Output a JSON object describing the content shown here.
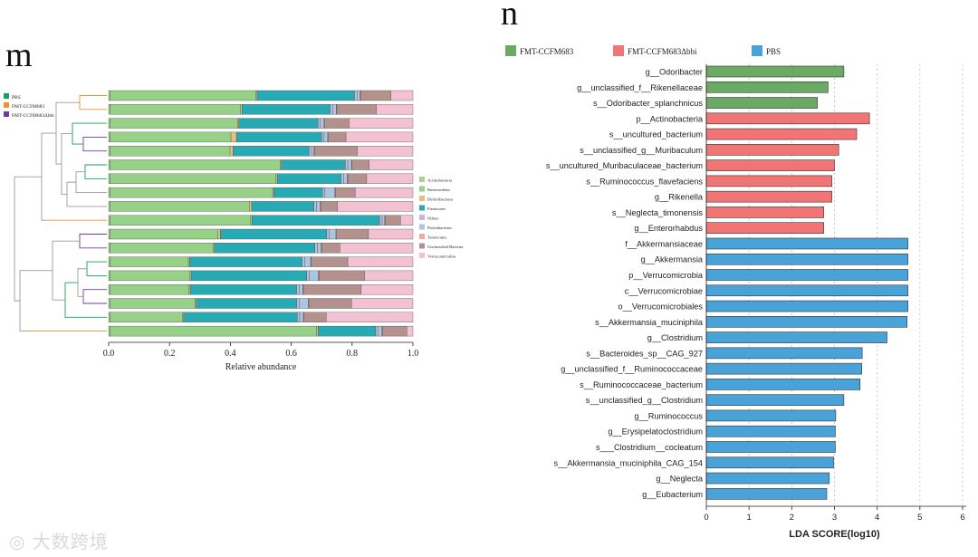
{
  "panels": {
    "m": "m",
    "n": "n"
  },
  "watermark": "大数跨境",
  "chart_data": [
    {
      "type": "bar",
      "subtype": "stacked-horizontal-with-dendrogram",
      "title": "",
      "xlabel": "Relative abundance",
      "xlim": [
        0,
        1.0
      ],
      "xticks": [
        "0.0",
        "0.2",
        "0.4",
        "0.6",
        "0.8",
        "1.0"
      ],
      "group_legend": [
        {
          "label": "PBS",
          "color": "#16a05a"
        },
        {
          "label": "FMT-CCFM683",
          "color": "#f0902e"
        },
        {
          "label": "FMT-CCFM683Δbbi",
          "color": "#6f3aa3"
        }
      ],
      "taxa": [
        {
          "name": "Actinobacteria",
          "color": "#a9d18e"
        },
        {
          "name": "Bacteroidetes",
          "color": "#97d087"
        },
        {
          "name": "Deferribacteres",
          "color": "#e3c07c"
        },
        {
          "name": "Firmicutes",
          "color": "#27aab3"
        },
        {
          "name": "Others",
          "color": "#c9b6d8"
        },
        {
          "name": "Proteobacteria",
          "color": "#a7c8e0"
        },
        {
          "name": "Tenericutes",
          "color": "#f2a8a8"
        },
        {
          "name": "Unclassified Bacteria",
          "color": "#b3918c"
        },
        {
          "name": "Verrucomicrobia",
          "color": "#f3c2d2"
        }
      ],
      "samples": [
        {
          "group": "FMT-CCFM683",
          "values": [
            0.004,
            0.48,
            0.004,
            0.32,
            0.008,
            0.01,
            0.002,
            0.1,
            0.072
          ]
        },
        {
          "group": "FMT-CCFM683",
          "values": [
            0.004,
            0.43,
            0.004,
            0.29,
            0.008,
            0.012,
            0.002,
            0.13,
            0.12
          ]
        },
        {
          "group": "PBS",
          "values": [
            0.004,
            0.42,
            0.004,
            0.26,
            0.008,
            0.012,
            0.002,
            0.08,
            0.21
          ]
        },
        {
          "group": "FMT-CCFM683Δbbi",
          "values": [
            0.004,
            0.398,
            0.018,
            0.28,
            0.008,
            0.012,
            0.002,
            0.058,
            0.22
          ]
        },
        {
          "group": "PBS",
          "values": [
            0.004,
            0.395,
            0.01,
            0.25,
            0.008,
            0.008,
            0.002,
            0.14,
            0.183
          ]
        },
        {
          "group": "PBS",
          "values": [
            0.004,
            0.56,
            0.004,
            0.21,
            0.008,
            0.012,
            0.002,
            0.056,
            0.144
          ]
        },
        {
          "group": "FMT-CCFM683Δbbi",
          "values": [
            0.004,
            0.546,
            0.004,
            0.21,
            0.008,
            0.012,
            0.002,
            0.062,
            0.152
          ]
        },
        {
          "group": "FMT-CCFM683Δbbi",
          "values": [
            0.004,
            0.535,
            0.004,
            0.16,
            0.008,
            0.032,
            0.002,
            0.065,
            0.19
          ]
        },
        {
          "group": "FMT-CCFM683",
          "values": [
            0.004,
            0.458,
            0.008,
            0.205,
            0.008,
            0.012,
            0.002,
            0.055,
            0.248
          ]
        },
        {
          "group": "FMT-CCFM683",
          "values": [
            0.004,
            0.463,
            0.004,
            0.42,
            0.008,
            0.008,
            0.002,
            0.05,
            0.041
          ]
        },
        {
          "group": "FMT-CCFM683Δbbi",
          "values": [
            0.004,
            0.355,
            0.008,
            0.35,
            0.008,
            0.022,
            0.002,
            0.105,
            0.146
          ]
        },
        {
          "group": "FMT-CCFM683Δbbi",
          "values": [
            0.004,
            0.34,
            0.004,
            0.33,
            0.008,
            0.012,
            0.002,
            0.06,
            0.24
          ]
        },
        {
          "group": "PBS",
          "values": [
            0.004,
            0.258,
            0.004,
            0.37,
            0.008,
            0.02,
            0.002,
            0.12,
            0.214
          ]
        },
        {
          "group": "FMT-CCFM683",
          "values": [
            0.004,
            0.263,
            0.004,
            0.38,
            0.008,
            0.03,
            0.002,
            0.15,
            0.159
          ]
        },
        {
          "group": "FMT-CCFM683Δbbi",
          "values": [
            0.004,
            0.26,
            0.004,
            0.35,
            0.008,
            0.012,
            0.002,
            0.19,
            0.17
          ]
        },
        {
          "group": "FMT-CCFM683",
          "values": [
            0.004,
            0.28,
            0.004,
            0.33,
            0.008,
            0.03,
            0.002,
            0.14,
            0.202
          ]
        },
        {
          "group": "FMT-CCFM683Δbbi",
          "values": [
            0.004,
            0.238,
            0.004,
            0.374,
            0.008,
            0.012,
            0.002,
            0.073,
            0.285
          ]
        },
        {
          "group": "FMT-CCFM683",
          "values": [
            0.004,
            0.68,
            0.004,
            0.19,
            0.008,
            0.012,
            0.002,
            0.08,
            0.02
          ]
        }
      ]
    },
    {
      "type": "bar",
      "subtype": "horizontal-lda",
      "title": "",
      "xlabel": "LDA SCORE(log10)",
      "xlim": [
        0,
        6
      ],
      "xticks": [
        "0",
        "1",
        "2",
        "3",
        "4",
        "5",
        "6"
      ],
      "legend": [
        {
          "label": "FMT-CCFM683",
          "color": "#6aaa64"
        },
        {
          "label": "FMT-CCFM683Δbbi",
          "color": "#f07574"
        },
        {
          "label": "PBS",
          "color": "#4aa3d8"
        }
      ],
      "categories": [
        "g__Odoribacter",
        "g__unclassified_f__Rikenellaceae",
        "s__Odoribacter_splanchnicus",
        "p__Actinobacteria",
        "s__uncultured_bacterium",
        "s__unclassified_g__Muribaculum",
        "s__uncultured_Muribaculaceae_bacterium",
        "s__Ruminococcus_flavefaciens",
        "g__Rikenella",
        "s__Neglecta_timonensis",
        "g__Enterorhabdus",
        "f__Akkermansiaceae",
        "g__Akkermansia",
        "p__Verrucomicrobia",
        "c__Verrucomicrobiae",
        "o__Verrucomicrobiales",
        "s__Akkermansia_muciniphila",
        "g__Clostridium",
        "s__Bacteroides_sp__CAG_927",
        "g__unclassified_f__Ruminococcaceae",
        "s__Ruminococcaceae_bacterium",
        "s__unclassified_g__Clostridium",
        "g__Ruminococcus",
        "g__Erysipelatoclostridium",
        "s___Clostridium__cocleatum",
        "s__Akkermansia_muciniphila_CAG_154",
        "g__Neglecta",
        "g__Eubacterium"
      ],
      "values": [
        3.22,
        2.85,
        2.6,
        3.82,
        3.52,
        3.1,
        3.0,
        2.94,
        2.94,
        2.75,
        2.75,
        4.72,
        4.72,
        4.72,
        4.72,
        4.72,
        4.7,
        4.23,
        3.65,
        3.64,
        3.6,
        3.22,
        3.03,
        3.02,
        3.02,
        2.98,
        2.88,
        2.82
      ],
      "groups": [
        "FMT-CCFM683",
        "FMT-CCFM683",
        "FMT-CCFM683",
        "FMT-CCFM683Δbbi",
        "FMT-CCFM683Δbbi",
        "FMT-CCFM683Δbbi",
        "FMT-CCFM683Δbbi",
        "FMT-CCFM683Δbbi",
        "FMT-CCFM683Δbbi",
        "FMT-CCFM683Δbbi",
        "FMT-CCFM683Δbbi",
        "PBS",
        "PBS",
        "PBS",
        "PBS",
        "PBS",
        "PBS",
        "PBS",
        "PBS",
        "PBS",
        "PBS",
        "PBS",
        "PBS",
        "PBS",
        "PBS",
        "PBS",
        "PBS",
        "PBS"
      ]
    }
  ]
}
